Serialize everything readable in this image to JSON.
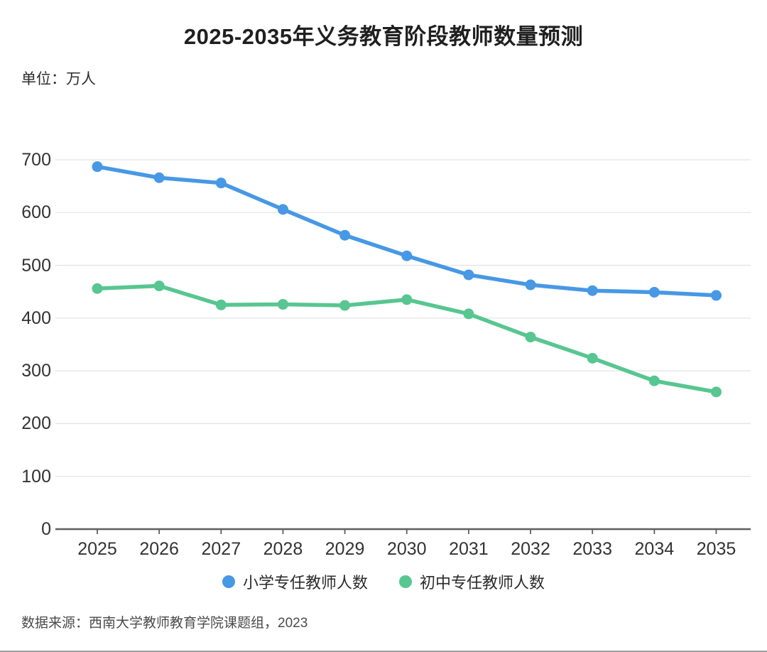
{
  "page": {
    "title": "2025-2035年义务教育阶段教师数量预测",
    "unit_label": "单位：万人",
    "source_note": "数据来源：西南大学教师教育学院课题组，2023"
  },
  "chart_data": {
    "type": "line",
    "title": "2025-2035年义务教育阶段教师数量预测",
    "unit": "万人",
    "categories": [
      "2025",
      "2026",
      "2027",
      "2028",
      "2029",
      "2030",
      "2031",
      "2032",
      "2033",
      "2034",
      "2035"
    ],
    "series": [
      {
        "name": "小学专任教师人数",
        "color": "#4798E5",
        "values": [
          687,
          666,
          656,
          606,
          557,
          518,
          482,
          463,
          452,
          449,
          443
        ]
      },
      {
        "name": "初中专任教师人数",
        "color": "#57C690",
        "values": [
          456,
          461,
          425,
          426,
          424,
          435,
          408,
          364,
          324,
          281,
          260
        ]
      }
    ],
    "ylim": [
      0,
      700
    ],
    "y_ticks": [
      0,
      100,
      200,
      300,
      400,
      500,
      600,
      700
    ],
    "grid": "horizontal",
    "legend_position": "bottom-center",
    "styles": {
      "grid_color": "#e4e4e4",
      "axis_color": "#5f5f5f",
      "tick_label_color": "#333333"
    }
  }
}
